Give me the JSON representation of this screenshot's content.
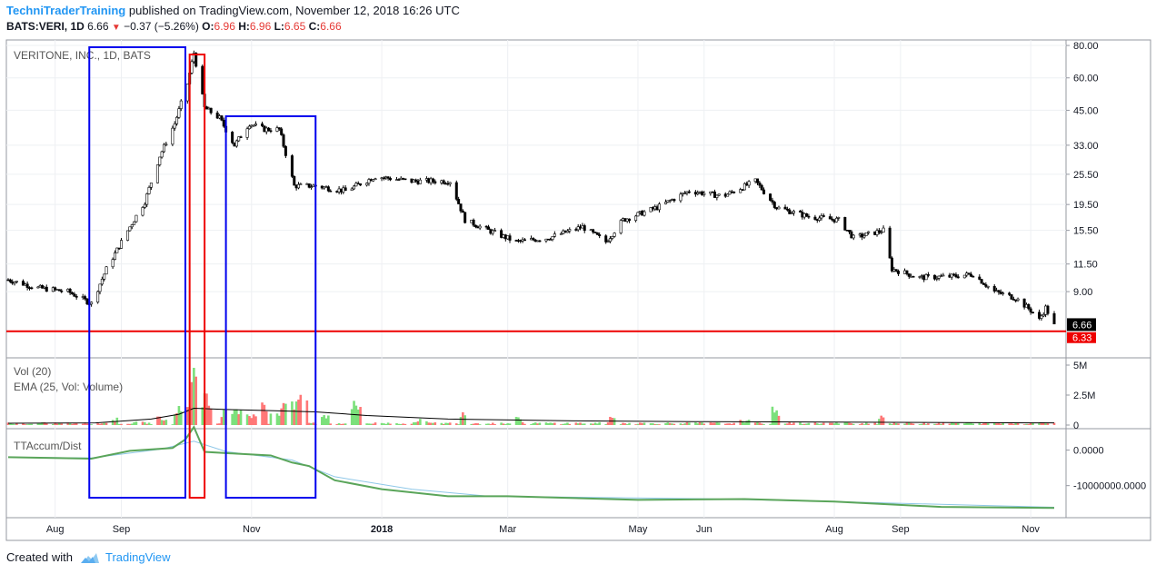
{
  "header": {
    "author": "TechniTraderTraining",
    "published_text": "published on TradingView.com, November 12, 2018 16:26 UTC",
    "symbol": "BATS:VERI, 1D",
    "last": "6.66",
    "change": "−0.37 (−5.26%)",
    "o_label": "O:",
    "o": "6.96",
    "h_label": "H:",
    "h": "6.96",
    "l_label": "L:",
    "l": "6.65",
    "c_label": "C:",
    "c": "6.66"
  },
  "footer": {
    "created_with": "Created with",
    "brand": "TradingView",
    "logo_icon": "tradingview-cloud-icon"
  },
  "colors": {
    "up": "#7be07b",
    "down": "#f77",
    "candle": "#000000",
    "ema": "#000000",
    "accum": "#5aa55a",
    "accum_ma": "#8ec7e8",
    "box_blue": "#0000ee",
    "box_red": "#ee0000",
    "hline": "#ee0000",
    "grid": "#eef0f3"
  },
  "chart_data": [
    {
      "type": "candlestick",
      "title": "VERITONE, INC., 1D, BATS",
      "y_scale": "log",
      "y_ticks": [
        "80.00",
        "60.00",
        "45.00",
        "33.00",
        "25.50",
        "19.50",
        "15.50",
        "11.50",
        "9.00"
      ],
      "ylim": [
        5.0,
        84.0
      ],
      "x_labels": [
        "Aug",
        "Sep",
        "Nov",
        "2018",
        "Mar",
        "May",
        "Jun",
        "Aug",
        "Sep",
        "Nov"
      ],
      "last_price_label": "6.66",
      "hline_label": "6.33",
      "hline_value": 6.33,
      "series": [
        {
          "values": [
            {
              "date": "2017-07-10",
              "close": 10.0
            },
            {
              "date": "2017-07-24",
              "close": 9.3
            },
            {
              "date": "2017-08-07",
              "close": 9.0
            },
            {
              "date": "2017-08-18",
              "close": 8.1
            },
            {
              "date": "2017-08-25",
              "close": 11.0
            },
            {
              "date": "2017-09-05",
              "close": 16.0
            },
            {
              "date": "2017-09-12",
              "close": 20.0
            },
            {
              "date": "2017-09-19",
              "close": 30.0
            },
            {
              "date": "2017-09-26",
              "close": 40.0
            },
            {
              "date": "2017-10-02",
              "close": 57.0
            },
            {
              "date": "2017-10-05",
              "close": 75.0
            },
            {
              "date": "2017-10-10",
              "close": 46.0
            },
            {
              "date": "2017-10-17",
              "close": 42.0
            },
            {
              "date": "2017-10-24",
              "close": 33.0
            },
            {
              "date": "2017-10-31",
              "close": 40.0
            },
            {
              "date": "2017-11-07",
              "close": 38.0
            },
            {
              "date": "2017-11-14",
              "close": 38.0
            },
            {
              "date": "2017-11-21",
              "close": 23.0
            },
            {
              "date": "2017-12-01",
              "close": 23.0
            },
            {
              "date": "2017-12-15",
              "close": 22.0
            },
            {
              "date": "2017-12-29",
              "close": 25.0
            },
            {
              "date": "2018-01-15",
              "close": 24.0
            },
            {
              "date": "2018-02-02",
              "close": 24.0
            },
            {
              "date": "2018-02-09",
              "close": 17.0
            },
            {
              "date": "2018-02-20",
              "close": 15.5
            },
            {
              "date": "2018-03-05",
              "close": 14.0
            },
            {
              "date": "2018-03-20",
              "close": 14.5
            },
            {
              "date": "2018-04-05",
              "close": 16.0
            },
            {
              "date": "2018-04-16",
              "close": 14.0
            },
            {
              "date": "2018-04-24",
              "close": 17.0
            },
            {
              "date": "2018-05-10",
              "close": 19.0
            },
            {
              "date": "2018-05-25",
              "close": 22.0
            },
            {
              "date": "2018-06-10",
              "close": 21.0
            },
            {
              "date": "2018-06-25",
              "close": 24.0
            },
            {
              "date": "2018-07-05",
              "close": 19.0
            },
            {
              "date": "2018-07-20",
              "close": 17.5
            },
            {
              "date": "2018-08-03",
              "close": 17.0
            },
            {
              "date": "2018-08-10",
              "close": 14.5
            },
            {
              "date": "2018-08-24",
              "close": 15.5
            },
            {
              "date": "2018-08-28",
              "close": 11.0
            },
            {
              "date": "2018-09-10",
              "close": 10.2
            },
            {
              "date": "2018-09-25",
              "close": 10.3
            },
            {
              "date": "2018-10-05",
              "close": 10.5
            },
            {
              "date": "2018-10-15",
              "close": 9.0
            },
            {
              "date": "2018-10-25",
              "close": 8.5
            },
            {
              "date": "2018-11-02",
              "close": 7.5
            },
            {
              "date": "2018-11-05",
              "close": 7.0
            },
            {
              "date": "2018-11-08",
              "close": 7.8
            },
            {
              "date": "2018-11-12",
              "close": 6.66
            }
          ]
        }
      ]
    },
    {
      "type": "bar",
      "title": "Vol (20)",
      "subtitle": "EMA (25, Vol: Volume)",
      "y_ticks": [
        "5M",
        "2.5M",
        "0"
      ],
      "ylim": [
        0,
        5000000
      ],
      "series": [
        {
          "values": [
            {
              "date": "2017-07-20",
              "v": 100000
            },
            {
              "date": "2017-08-10",
              "v": 150000
            },
            {
              "date": "2017-08-28",
              "v": 600000
            },
            {
              "date": "2017-09-10",
              "v": 300000
            },
            {
              "date": "2017-09-20",
              "v": 700000
            },
            {
              "date": "2017-09-28",
              "v": 1500000
            },
            {
              "date": "2017-10-02",
              "v": 2200000
            },
            {
              "date": "2017-10-05",
              "v": 5300000
            },
            {
              "date": "2017-10-09",
              "v": 2900000
            },
            {
              "date": "2017-10-13",
              "v": 1500000
            },
            {
              "date": "2017-10-20",
              "v": 1300000
            },
            {
              "date": "2017-10-25",
              "v": 1800000
            },
            {
              "date": "2017-11-01",
              "v": 1100000
            },
            {
              "date": "2017-11-06",
              "v": 1800000
            },
            {
              "date": "2017-11-12",
              "v": 1200000
            },
            {
              "date": "2017-11-16",
              "v": 2400000
            },
            {
              "date": "2017-11-20",
              "v": 1800000
            },
            {
              "date": "2017-11-25",
              "v": 2900000
            },
            {
              "date": "2017-12-05",
              "v": 900000
            },
            {
              "date": "2017-12-20",
              "v": 1900000
            },
            {
              "date": "2018-01-20",
              "v": 600000
            },
            {
              "date": "2018-02-09",
              "v": 1300000
            },
            {
              "date": "2018-03-05",
              "v": 800000
            },
            {
              "date": "2018-04-20",
              "v": 700000
            },
            {
              "date": "2018-06-20",
              "v": 400000
            },
            {
              "date": "2018-07-05",
              "v": 1400000
            },
            {
              "date": "2018-08-24",
              "v": 900000
            },
            {
              "date": "2018-11-05",
              "v": 300000
            }
          ]
        },
        {
          "name": "EMA (25, Vol: Volume)",
          "values": [
            {
              "date": "2017-07-10",
              "v": 150000
            },
            {
              "date": "2017-08-20",
              "v": 180000
            },
            {
              "date": "2017-09-15",
              "v": 500000
            },
            {
              "date": "2017-09-28",
              "v": 900000
            },
            {
              "date": "2017-10-05",
              "v": 1400000
            },
            {
              "date": "2017-10-20",
              "v": 1300000
            },
            {
              "date": "2017-11-10",
              "v": 1200000
            },
            {
              "date": "2017-12-01",
              "v": 1100000
            },
            {
              "date": "2017-12-25",
              "v": 800000
            },
            {
              "date": "2018-02-01",
              "v": 500000
            },
            {
              "date": "2018-04-01",
              "v": 350000
            },
            {
              "date": "2018-06-01",
              "v": 280000
            },
            {
              "date": "2018-08-01",
              "v": 250000
            },
            {
              "date": "2018-11-12",
              "v": 180000
            }
          ]
        }
      ]
    },
    {
      "type": "line",
      "title": "TTAccum/Dist",
      "y_ticks": [
        "0.0000",
        "-10000000.0000"
      ],
      "ylim": [
        -17500000,
        4500000
      ],
      "series": [
        {
          "values": [
            {
              "date": "2017-07-10",
              "v": -2000000
            },
            {
              "date": "2017-08-18",
              "v": -2400000
            },
            {
              "date": "2017-09-05",
              "v": -200000
            },
            {
              "date": "2017-09-25",
              "v": 600000
            },
            {
              "date": "2017-10-01",
              "v": 3000000
            },
            {
              "date": "2017-10-05",
              "v": 6500000
            },
            {
              "date": "2017-10-10",
              "v": -500000
            },
            {
              "date": "2017-10-25",
              "v": -1000000
            },
            {
              "date": "2017-11-10",
              "v": -1500000
            },
            {
              "date": "2017-11-20",
              "v": -3500000
            },
            {
              "date": "2017-11-28",
              "v": -4500000
            },
            {
              "date": "2017-12-10",
              "v": -8500000
            },
            {
              "date": "2018-01-01",
              "v": -11000000
            },
            {
              "date": "2018-02-01",
              "v": -13000000
            },
            {
              "date": "2018-03-01",
              "v": -13000000
            },
            {
              "date": "2018-05-01",
              "v": -14000000
            },
            {
              "date": "2018-06-20",
              "v": -13800000
            },
            {
              "date": "2018-08-01",
              "v": -14500000
            },
            {
              "date": "2018-09-20",
              "v": -16000000
            },
            {
              "date": "2018-11-12",
              "v": -16300000
            }
          ]
        },
        {
          "values": [
            {
              "date": "2017-07-10",
              "v": -2000000
            },
            {
              "date": "2017-08-18",
              "v": -2200000
            },
            {
              "date": "2017-09-20",
              "v": 300000
            },
            {
              "date": "2017-10-05",
              "v": 2500000
            },
            {
              "date": "2017-10-20",
              "v": -400000
            },
            {
              "date": "2017-11-20",
              "v": -2800000
            },
            {
              "date": "2017-12-10",
              "v": -7500000
            },
            {
              "date": "2018-01-15",
              "v": -11000000
            },
            {
              "date": "2018-02-20",
              "v": -13000000
            },
            {
              "date": "2018-06-01",
              "v": -13700000
            },
            {
              "date": "2018-08-01",
              "v": -14500000
            },
            {
              "date": "2018-11-12",
              "v": -16100000
            }
          ]
        }
      ]
    }
  ],
  "annotations": [
    {
      "name": "blue-box-1",
      "color": "blue",
      "from": "2017-08-17",
      "to": "2017-10-01"
    },
    {
      "name": "red-box",
      "color": "red",
      "from": "2017-10-03",
      "to": "2017-10-10"
    },
    {
      "name": "blue-box-2",
      "color": "blue",
      "from": "2017-10-20",
      "to": "2017-12-01"
    }
  ]
}
